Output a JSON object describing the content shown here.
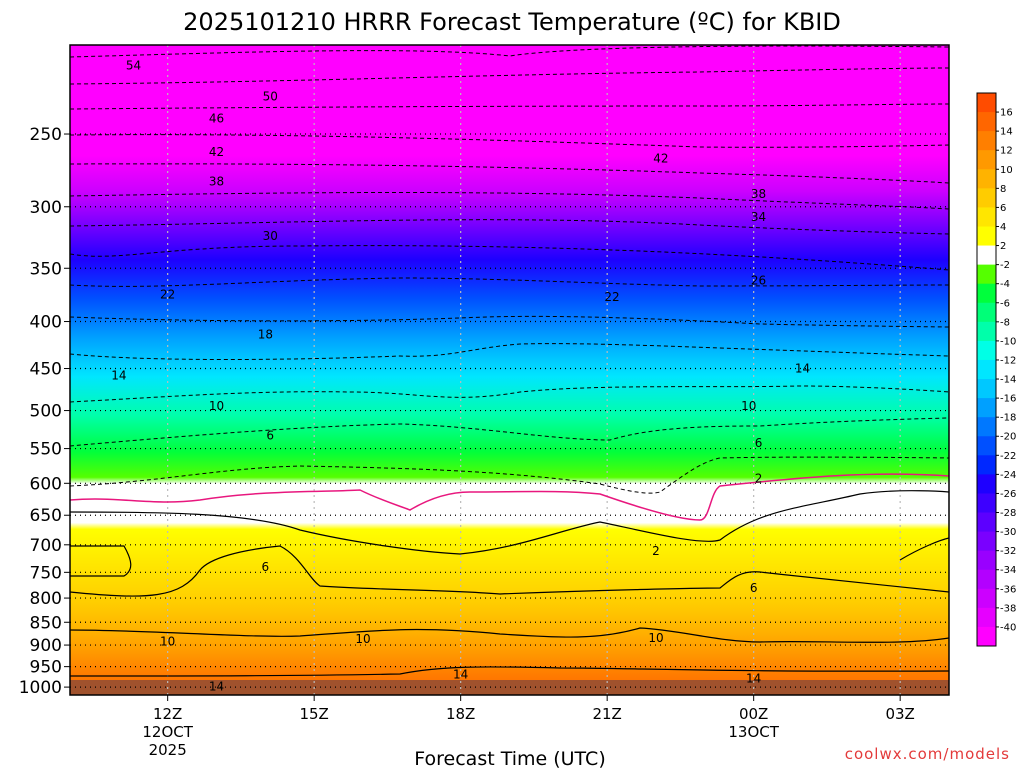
{
  "colors": {
    "t_m40": "#ff00ff",
    "t_m38": "#e600ff",
    "t_m36": "#cc00ff",
    "t_m34": "#b300ff",
    "t_m32": "#9900ff",
    "t_m30": "#7a00ff",
    "t_m28": "#5c00ff",
    "t_m26": "#3d00ff",
    "t_m24": "#1e00ff",
    "t_m22": "#0028ff",
    "t_m20": "#0050ff",
    "t_m18": "#0078ff",
    "t_m16": "#00a0ff",
    "t_m14": "#00c8ff",
    "t_m12": "#00e6ff",
    "t_m10": "#00ffe6",
    "t_m8": "#00ffaa",
    "t_m6": "#00ff78",
    "t_m4": "#00ff3c",
    "t_m2": "#55ff00",
    "t_0": "#ffffff",
    "t_p2": "#ffff00",
    "t_p4": "#ffe600",
    "t_p6": "#ffcc00",
    "t_p8": "#ffb300",
    "t_p10": "#ff9900",
    "t_p12": "#ff7f00",
    "t_p14": "#ff6600",
    "t_p16": "#ff4c00",
    "terrain": "#a0522d",
    "freezing_line": "#e8177e",
    "credit": "#e33a3a"
  },
  "chart_data": {
    "type": "contour",
    "title": "2025101210 HRRR Forecast Temperature (ºC) for KBID",
    "xlabel": "Forecast Time (UTC)",
    "ylabel": "",
    "x_ticks": [
      {
        "label": "12Z",
        "sub1": "12OCT",
        "sub2": "2025",
        "hour": 12
      },
      {
        "label": "15Z",
        "sub1": "",
        "sub2": "",
        "hour": 15
      },
      {
        "label": "18Z",
        "sub1": "",
        "sub2": "",
        "hour": 18
      },
      {
        "label": "21Z",
        "sub1": "",
        "sub2": "",
        "hour": 21
      },
      {
        "label": "00Z",
        "sub1": "13OCT",
        "sub2": "",
        "hour": 24
      },
      {
        "label": "03Z",
        "sub1": "",
        "sub2": "",
        "hour": 27
      }
    ],
    "xlim": [
      10,
      28
    ],
    "y_ticks": [
      "250",
      "300",
      "350",
      "400",
      "450",
      "500",
      "550",
      "600",
      "650",
      "700",
      "750",
      "800",
      "850",
      "900",
      "950",
      "1000"
    ],
    "ylim": [
      1020,
      200
    ],
    "y_scale": "log",
    "colorbar_labels": [
      "16",
      "14",
      "12",
      "10",
      "8",
      "6",
      "4",
      "2",
      "-2",
      "-4",
      "-6",
      "-8",
      "-10",
      "-12",
      "-14",
      "-16",
      "-18",
      "-20",
      "-22",
      "-24",
      "-26",
      "-28",
      "-30",
      "-32",
      "-34",
      "-36",
      "-38",
      "-40"
    ],
    "contour_labels": [
      {
        "text": "54",
        "x": 11.3,
        "p": 210
      },
      {
        "text": "50",
        "x": 14.1,
        "p": 227
      },
      {
        "text": "46",
        "x": 13.0,
        "p": 240
      },
      {
        "text": "42",
        "x": 13.0,
        "p": 261
      },
      {
        "text": "42",
        "x": 22.1,
        "p": 265
      },
      {
        "text": "38",
        "x": 13.0,
        "p": 281
      },
      {
        "text": "38",
        "x": 24.1,
        "p": 290
      },
      {
        "text": "34",
        "x": 24.1,
        "p": 307
      },
      {
        "text": "30",
        "x": 14.1,
        "p": 322
      },
      {
        "text": "26",
        "x": 24.1,
        "p": 360
      },
      {
        "text": "22",
        "x": 12.0,
        "p": 373
      },
      {
        "text": "22",
        "x": 21.1,
        "p": 375
      },
      {
        "text": "18",
        "x": 14.0,
        "p": 412
      },
      {
        "text": "14",
        "x": 11.0,
        "p": 457
      },
      {
        "text": "14",
        "x": 25.0,
        "p": 449
      },
      {
        "text": "10",
        "x": 13.0,
        "p": 493
      },
      {
        "text": "10",
        "x": 23.9,
        "p": 493
      },
      {
        "text": "6",
        "x": 14.1,
        "p": 531
      },
      {
        "text": "6",
        "x": 24.1,
        "p": 541
      },
      {
        "text": "2",
        "x": 24.1,
        "p": 591
      },
      {
        "text": "2",
        "x": 22.0,
        "p": 709
      },
      {
        "text": "6",
        "x": 14.0,
        "p": 738
      },
      {
        "text": "6",
        "x": 24.0,
        "p": 778
      },
      {
        "text": "10",
        "x": 12.0,
        "p": 890
      },
      {
        "text": "10",
        "x": 16.0,
        "p": 884
      },
      {
        "text": "10",
        "x": 22.0,
        "p": 882
      },
      {
        "text": "14",
        "x": 18.0,
        "p": 966
      },
      {
        "text": "14",
        "x": 13.0,
        "p": 996
      },
      {
        "text": "14",
        "x": 24.0,
        "p": 976
      }
    ],
    "grid": true,
    "legend": "colorbar-right"
  },
  "credit": "coolwx.com/models"
}
